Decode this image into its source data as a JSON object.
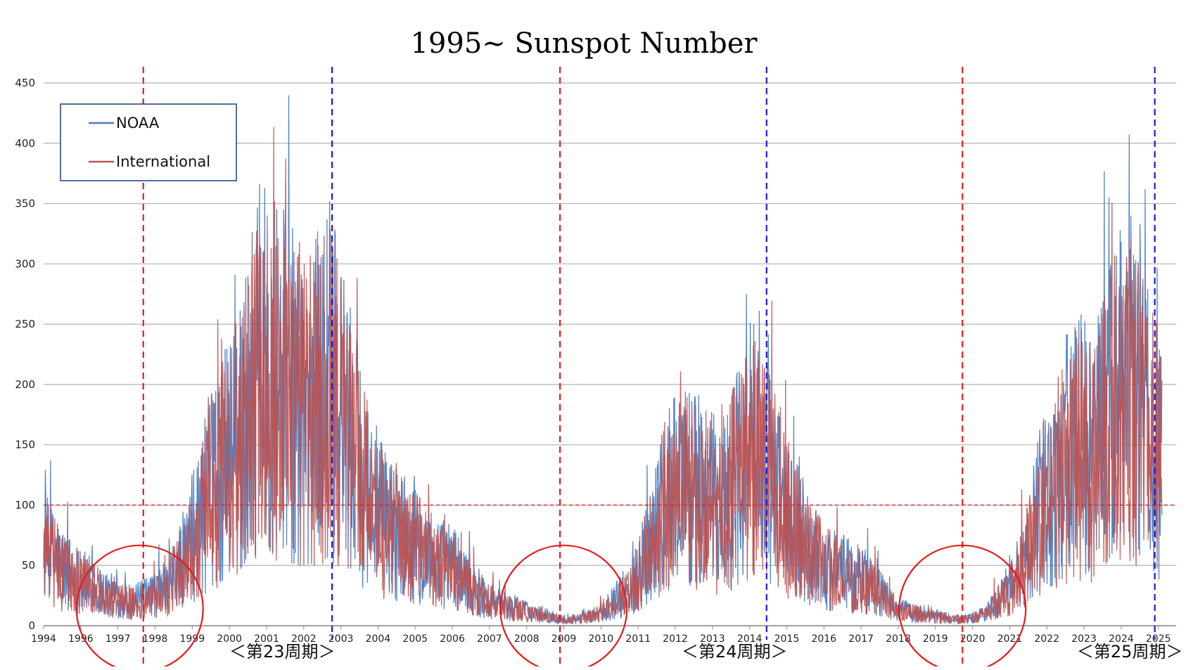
{
  "chart_data": {
    "type": "line",
    "title": "1995~ Sunspot Number",
    "xlabel": "",
    "ylabel": "",
    "ylim": [
      0,
      450
    ],
    "xlim": [
      1994.0,
      2025.8
    ],
    "yticks": [
      0,
      50,
      100,
      150,
      200,
      250,
      300,
      350,
      400,
      450
    ],
    "xticks": [
      "1994",
      "1996",
      "1997",
      "1998",
      "1999",
      "2000",
      "2001",
      "2002",
      "2003",
      "2004",
      "2005",
      "2006",
      "2007",
      "2008",
      "2009",
      "2010",
      "2011",
      "2012",
      "2013",
      "2014",
      "2015",
      "2016",
      "2017",
      "2018",
      "2019",
      "2020",
      "2021",
      "2022",
      "2023",
      "2024",
      "2025"
    ],
    "grid": true,
    "legend_position": "top-left",
    "reference_line": {
      "y": 100,
      "color": "#e41c1c"
    },
    "series": [
      {
        "name": "NOAA",
        "color": "#4a7ec2",
        "x": [
          1994.0,
          1994.5,
          1995.0,
          1995.5,
          1996.0,
          1996.5,
          1997.0,
          1997.5,
          1998.0,
          1998.5,
          1999.0,
          1999.5,
          2000.0,
          2000.5,
          2001.0,
          2001.5,
          2002.0,
          2002.5,
          2003.0,
          2003.5,
          2004.0,
          2004.5,
          2005.0,
          2005.5,
          2006.0,
          2006.5,
          2007.0,
          2007.5,
          2008.0,
          2008.5,
          2009.0,
          2009.5,
          2010.0,
          2010.5,
          2011.0,
          2011.5,
          2012.0,
          2012.5,
          2013.0,
          2013.5,
          2014.0,
          2014.5,
          2015.0,
          2015.5,
          2016.0,
          2016.5,
          2017.0,
          2017.5,
          2018.0,
          2018.5,
          2019.0,
          2019.5,
          2020.0,
          2020.5,
          2021.0,
          2021.5,
          2022.0,
          2022.5,
          2023.0,
          2023.5,
          2024.0,
          2024.5,
          2025.0,
          2025.4
        ],
        "values": [
          60,
          45,
          35,
          28,
          22,
          18,
          22,
          30,
          55,
          90,
          120,
          150,
          190,
          200,
          175,
          170,
          190,
          150,
          110,
          80,
          70,
          60,
          50,
          45,
          30,
          20,
          15,
          12,
          8,
          5,
          5,
          8,
          18,
          30,
          60,
          100,
          110,
          100,
          90,
          120,
          140,
          110,
          80,
          60,
          45,
          40,
          35,
          25,
          12,
          10,
          8,
          5,
          5,
          10,
          25,
          45,
          90,
          120,
          140,
          130,
          170,
          185,
          155,
          120
        ]
      },
      {
        "name": "International",
        "color": "#c0504d",
        "x": [
          1994.0,
          1994.5,
          1995.0,
          1995.5,
          1996.0,
          1996.5,
          1997.0,
          1997.5,
          1998.0,
          1998.5,
          1999.0,
          1999.5,
          2000.0,
          2000.5,
          2001.0,
          2001.5,
          2002.0,
          2002.5,
          2003.0,
          2003.5,
          2004.0,
          2004.5,
          2005.0,
          2005.5,
          2006.0,
          2006.5,
          2007.0,
          2007.5,
          2008.0,
          2008.5,
          2009.0,
          2009.5,
          2010.0,
          2010.5,
          2011.0,
          2011.5,
          2012.0,
          2012.5,
          2013.0,
          2013.5,
          2014.0,
          2014.5,
          2015.0,
          2015.5,
          2016.0,
          2016.5,
          2017.0,
          2017.5,
          2018.0,
          2018.5,
          2019.0,
          2019.5,
          2020.0,
          2020.5,
          2021.0,
          2021.5,
          2022.0,
          2022.5,
          2023.0,
          2023.5,
          2024.0,
          2024.5,
          2025.0,
          2025.4
        ],
        "values": [
          58,
          43,
          33,
          26,
          20,
          17,
          20,
          28,
          52,
          85,
          115,
          145,
          180,
          190,
          168,
          165,
          182,
          145,
          105,
          78,
          68,
          58,
          48,
          42,
          28,
          18,
          14,
          11,
          7,
          5,
          5,
          7,
          17,
          28,
          58,
          95,
          105,
          96,
          86,
          115,
          132,
          105,
          76,
          57,
          43,
          38,
          33,
          24,
          11,
          9,
          7,
          5,
          5,
          9,
          24,
          43,
          86,
          115,
          134,
          125,
          162,
          176,
          148,
          115
        ]
      }
    ],
    "cycle_boundaries_red": [
      1996.8,
      2008.5,
      2019.8
    ],
    "cycle_boundaries_blue": [
      2002.1,
      2014.3,
      2025.2
    ],
    "cycle_labels": [
      {
        "text": "＜第23周期＞",
        "x": 2000.7
      },
      {
        "text": "＜第24周期＞",
        "x": 2013.4
      },
      {
        "text": "＜第25周期＞",
        "x": 2024.5
      }
    ],
    "minimum_circles_at": [
      {
        "x": 1996.7,
        "y": 20
      },
      {
        "x": 2008.6,
        "y": 20
      },
      {
        "x": 2019.8,
        "y": 20
      }
    ]
  }
}
